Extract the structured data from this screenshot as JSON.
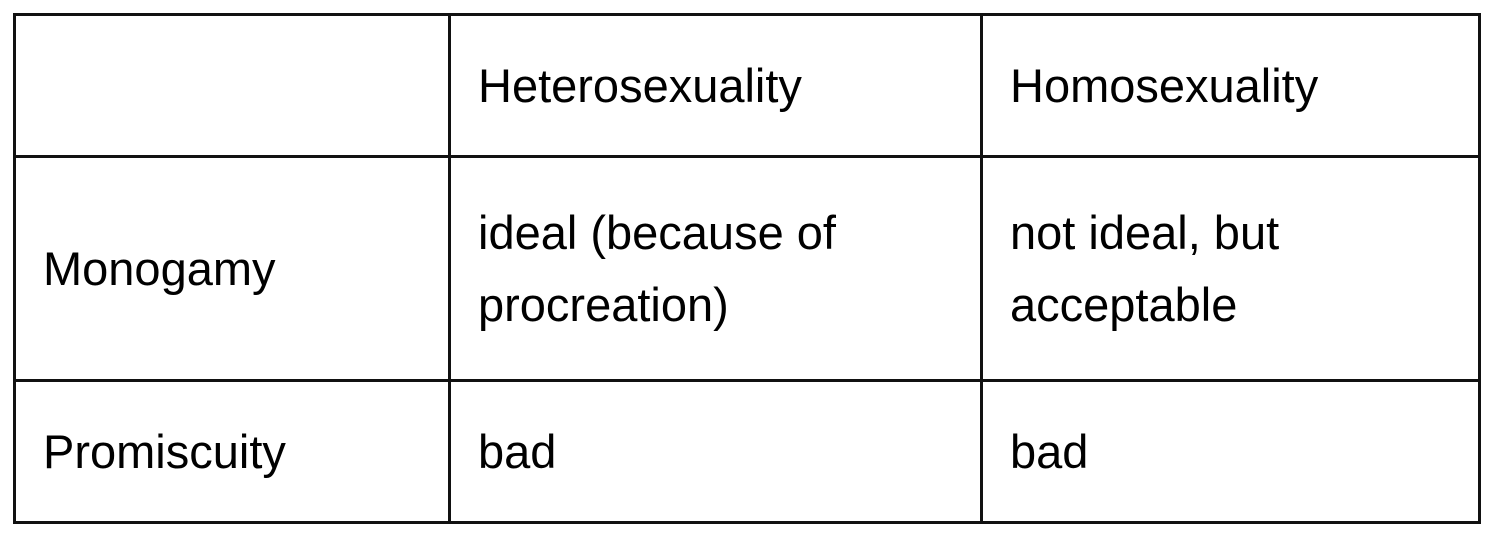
{
  "table": {
    "columns": [
      "Heterosexuality",
      "Homosexuality"
    ],
    "rows": [
      {
        "label": "Monogamy",
        "cells": [
          "ideal (because of procreation)",
          "not ideal, but acceptable"
        ]
      },
      {
        "label": "Promiscuity",
        "cells": [
          "bad",
          "bad"
        ]
      }
    ]
  }
}
